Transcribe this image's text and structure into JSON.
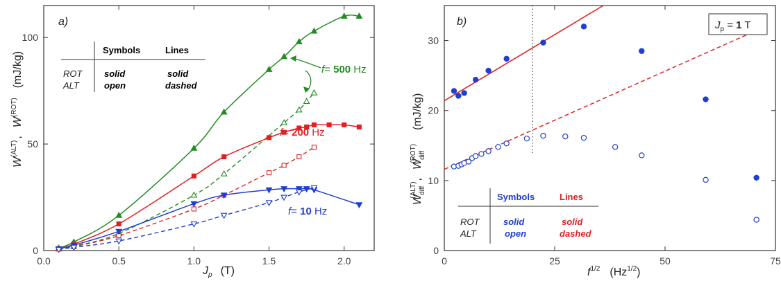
{
  "chart_data": [
    {
      "type": "line",
      "panel_label": "a)",
      "xlabel_main": "J",
      "xlabel_sub": "p",
      "xlabel_unit": "(T)",
      "ylabel": {
        "w1": "W",
        "s1": "(ALT)",
        "comma": ",",
        "w2": "W",
        "s2": "(ROT)",
        "unit": "(mJ/kg)"
      },
      "xlim": [
        0,
        2.2
      ],
      "ylim": [
        0,
        115
      ],
      "x_ticks": [
        "0.0",
        "0.5",
        "1.0",
        "1.5",
        "2.0"
      ],
      "y_ticks": [
        "0",
        "50",
        "100"
      ],
      "table": {
        "h1": "Symbols",
        "h2": "Lines",
        "r1c0": "ROT",
        "r2c0": "ALT",
        "r1c1": "solid",
        "r2c1": "open",
        "r1c2": "solid",
        "r2c2": "dashed"
      },
      "series": [
        {
          "name": "f= 500 Hz",
          "f_prefix": "f",
          "f_mid": "= ",
          "f_num": "500",
          "f_unit": " Hz",
          "color": "#228b22",
          "marker": "triangle-up",
          "rot_x": [
            0.1,
            0.2,
            0.5,
            1.0,
            1.2,
            1.5,
            1.6,
            1.7,
            1.8,
            2.0,
            2.1
          ],
          "rot_y": [
            1.2,
            4,
            16.5,
            48,
            65,
            85,
            91,
            98,
            103,
            110,
            110
          ],
          "alt_x": [
            0.1,
            0.2,
            0.5,
            1.0,
            1.2,
            1.6,
            1.7,
            1.75,
            1.8
          ],
          "alt_y": [
            0.8,
            2,
            8,
            26,
            36,
            60,
            66,
            70,
            74
          ]
        },
        {
          "name": "f= 200 Hz",
          "f_prefix": "f",
          "f_mid": "= ",
          "f_num": "200",
          "f_unit": " Hz",
          "color": "#e02020",
          "marker": "square",
          "rot_x": [
            0.1,
            0.2,
            0.5,
            1.0,
            1.2,
            1.5,
            1.6,
            1.7,
            1.75,
            1.8,
            1.9,
            2.0,
            2.1
          ],
          "rot_y": [
            0.9,
            3,
            12.5,
            35,
            44,
            53,
            55.5,
            57.5,
            58,
            59,
            59,
            59,
            58
          ],
          "alt_x": [
            0.1,
            0.2,
            0.5,
            1.0,
            1.2,
            1.5,
            1.6,
            1.7,
            1.8
          ],
          "alt_y": [
            0.7,
            1.8,
            7,
            19.5,
            26,
            36.5,
            40,
            44,
            48.5
          ]
        },
        {
          "name": "f= 10 Hz",
          "f_prefix": "f",
          "f_mid": "= ",
          "f_num": "10",
          "f_unit": " Hz",
          "color": "#1f3fd0",
          "marker": "triangle-down",
          "rot_x": [
            0.1,
            0.2,
            0.5,
            1.0,
            1.2,
            1.5,
            1.6,
            1.7,
            1.75,
            1.8,
            2.1
          ],
          "rot_y": [
            0.8,
            2.5,
            9,
            22,
            26,
            28.5,
            29,
            29,
            29,
            28.5,
            21.5
          ],
          "alt_x": [
            0.1,
            0.2,
            0.5,
            1.0,
            1.2,
            1.5,
            1.6,
            1.7,
            1.8
          ],
          "alt_y": [
            0.5,
            1.5,
            4.5,
            12.5,
            16.5,
            22.5,
            25,
            27.5,
            29.5
          ]
        }
      ]
    },
    {
      "type": "scatter",
      "panel_label": "b)",
      "xlabel_main": "f",
      "xlabel_sup": "1/2",
      "xlabel_unit": "(Hz",
      "xlabel_unit_sup": "1/2",
      "xlabel_unit_end": ")",
      "ylabel": {
        "w1": "W",
        "s1": "diff",
        "p1": "(ALT)",
        "comma": ",",
        "w2": "W",
        "s2": "diff",
        "p2": "(ROT)",
        "unit": "(mJ/kg)"
      },
      "xlim": [
        0,
        75
      ],
      "ylim": [
        0,
        35
      ],
      "x_ticks": [
        "0",
        "25",
        "50",
        "75"
      ],
      "y_ticks": [
        "0",
        "10",
        "20",
        "30"
      ],
      "box_label": {
        "j": "J",
        "sub": "p",
        "eq": " = ",
        "val": "1",
        "unit": " T"
      },
      "vline_x": 20,
      "table": {
        "h1": "Symbols",
        "h2": "Lines",
        "r1c0": "ROT",
        "r2c0": "ALT",
        "r1c1": "solid",
        "r2c1": "open",
        "r1c2": "solid",
        "r2c2": "dashed"
      },
      "rot_x": [
        2.2,
        3.2,
        4.5,
        7.1,
        10,
        14.1,
        22.4,
        31.6,
        44.7,
        59.2,
        70.7
      ],
      "rot_y": [
        22.8,
        22.1,
        22.5,
        24.4,
        25.7,
        27.4,
        29.7,
        32.0,
        28.5,
        21.6,
        10.4
      ],
      "alt_x": [
        2.2,
        3.2,
        3.9,
        4.5,
        5.5,
        6.3,
        7.1,
        8.4,
        10,
        12.2,
        14.1,
        18.7,
        22.4,
        27.4,
        31.6,
        38.7,
        44.7,
        59.2,
        70.7
      ],
      "alt_y": [
        12.0,
        12.1,
        12.3,
        12.5,
        12.7,
        13.2,
        13.5,
        13.8,
        14.2,
        14.8,
        15.3,
        16.0,
        16.4,
        16.3,
        16.1,
        14.8,
        13.6,
        10.1,
        4.4
      ],
      "rot_line": {
        "x0": 0,
        "y0": 21.4,
        "x1": 36,
        "y1": 35
      },
      "alt_line": {
        "x0": 0,
        "y0": 11.6,
        "x1": 72,
        "y1": 31.8
      },
      "colors": {
        "points": "#1f3fd0",
        "lines": "#e02020",
        "table_blue": "#1f3fd0",
        "table_red": "#e02020"
      }
    }
  ]
}
